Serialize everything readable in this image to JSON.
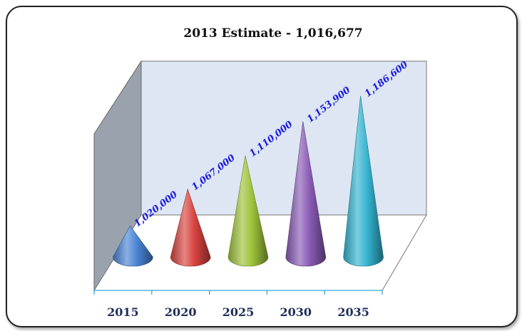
{
  "chart_data": {
    "type": "bar",
    "shape": "3d-cone",
    "title": "2013 Estimate - 1,016,677",
    "categories": [
      "2015",
      "2020",
      "2025",
      "2030",
      "2035"
    ],
    "values": [
      1020000,
      1067000,
      1110000,
      1153900,
      1186600
    ],
    "value_labels": [
      "1,020,000",
      "1,067,000",
      "1,110,000",
      "1,153,900",
      "1,186,600"
    ],
    "colors": [
      "#4a84d4",
      "#d8433f",
      "#9ec23a",
      "#8a5bb5",
      "#34b3d0"
    ],
    "ylim": [
      980000,
      1200000
    ],
    "grid": false,
    "legend": "none"
  }
}
